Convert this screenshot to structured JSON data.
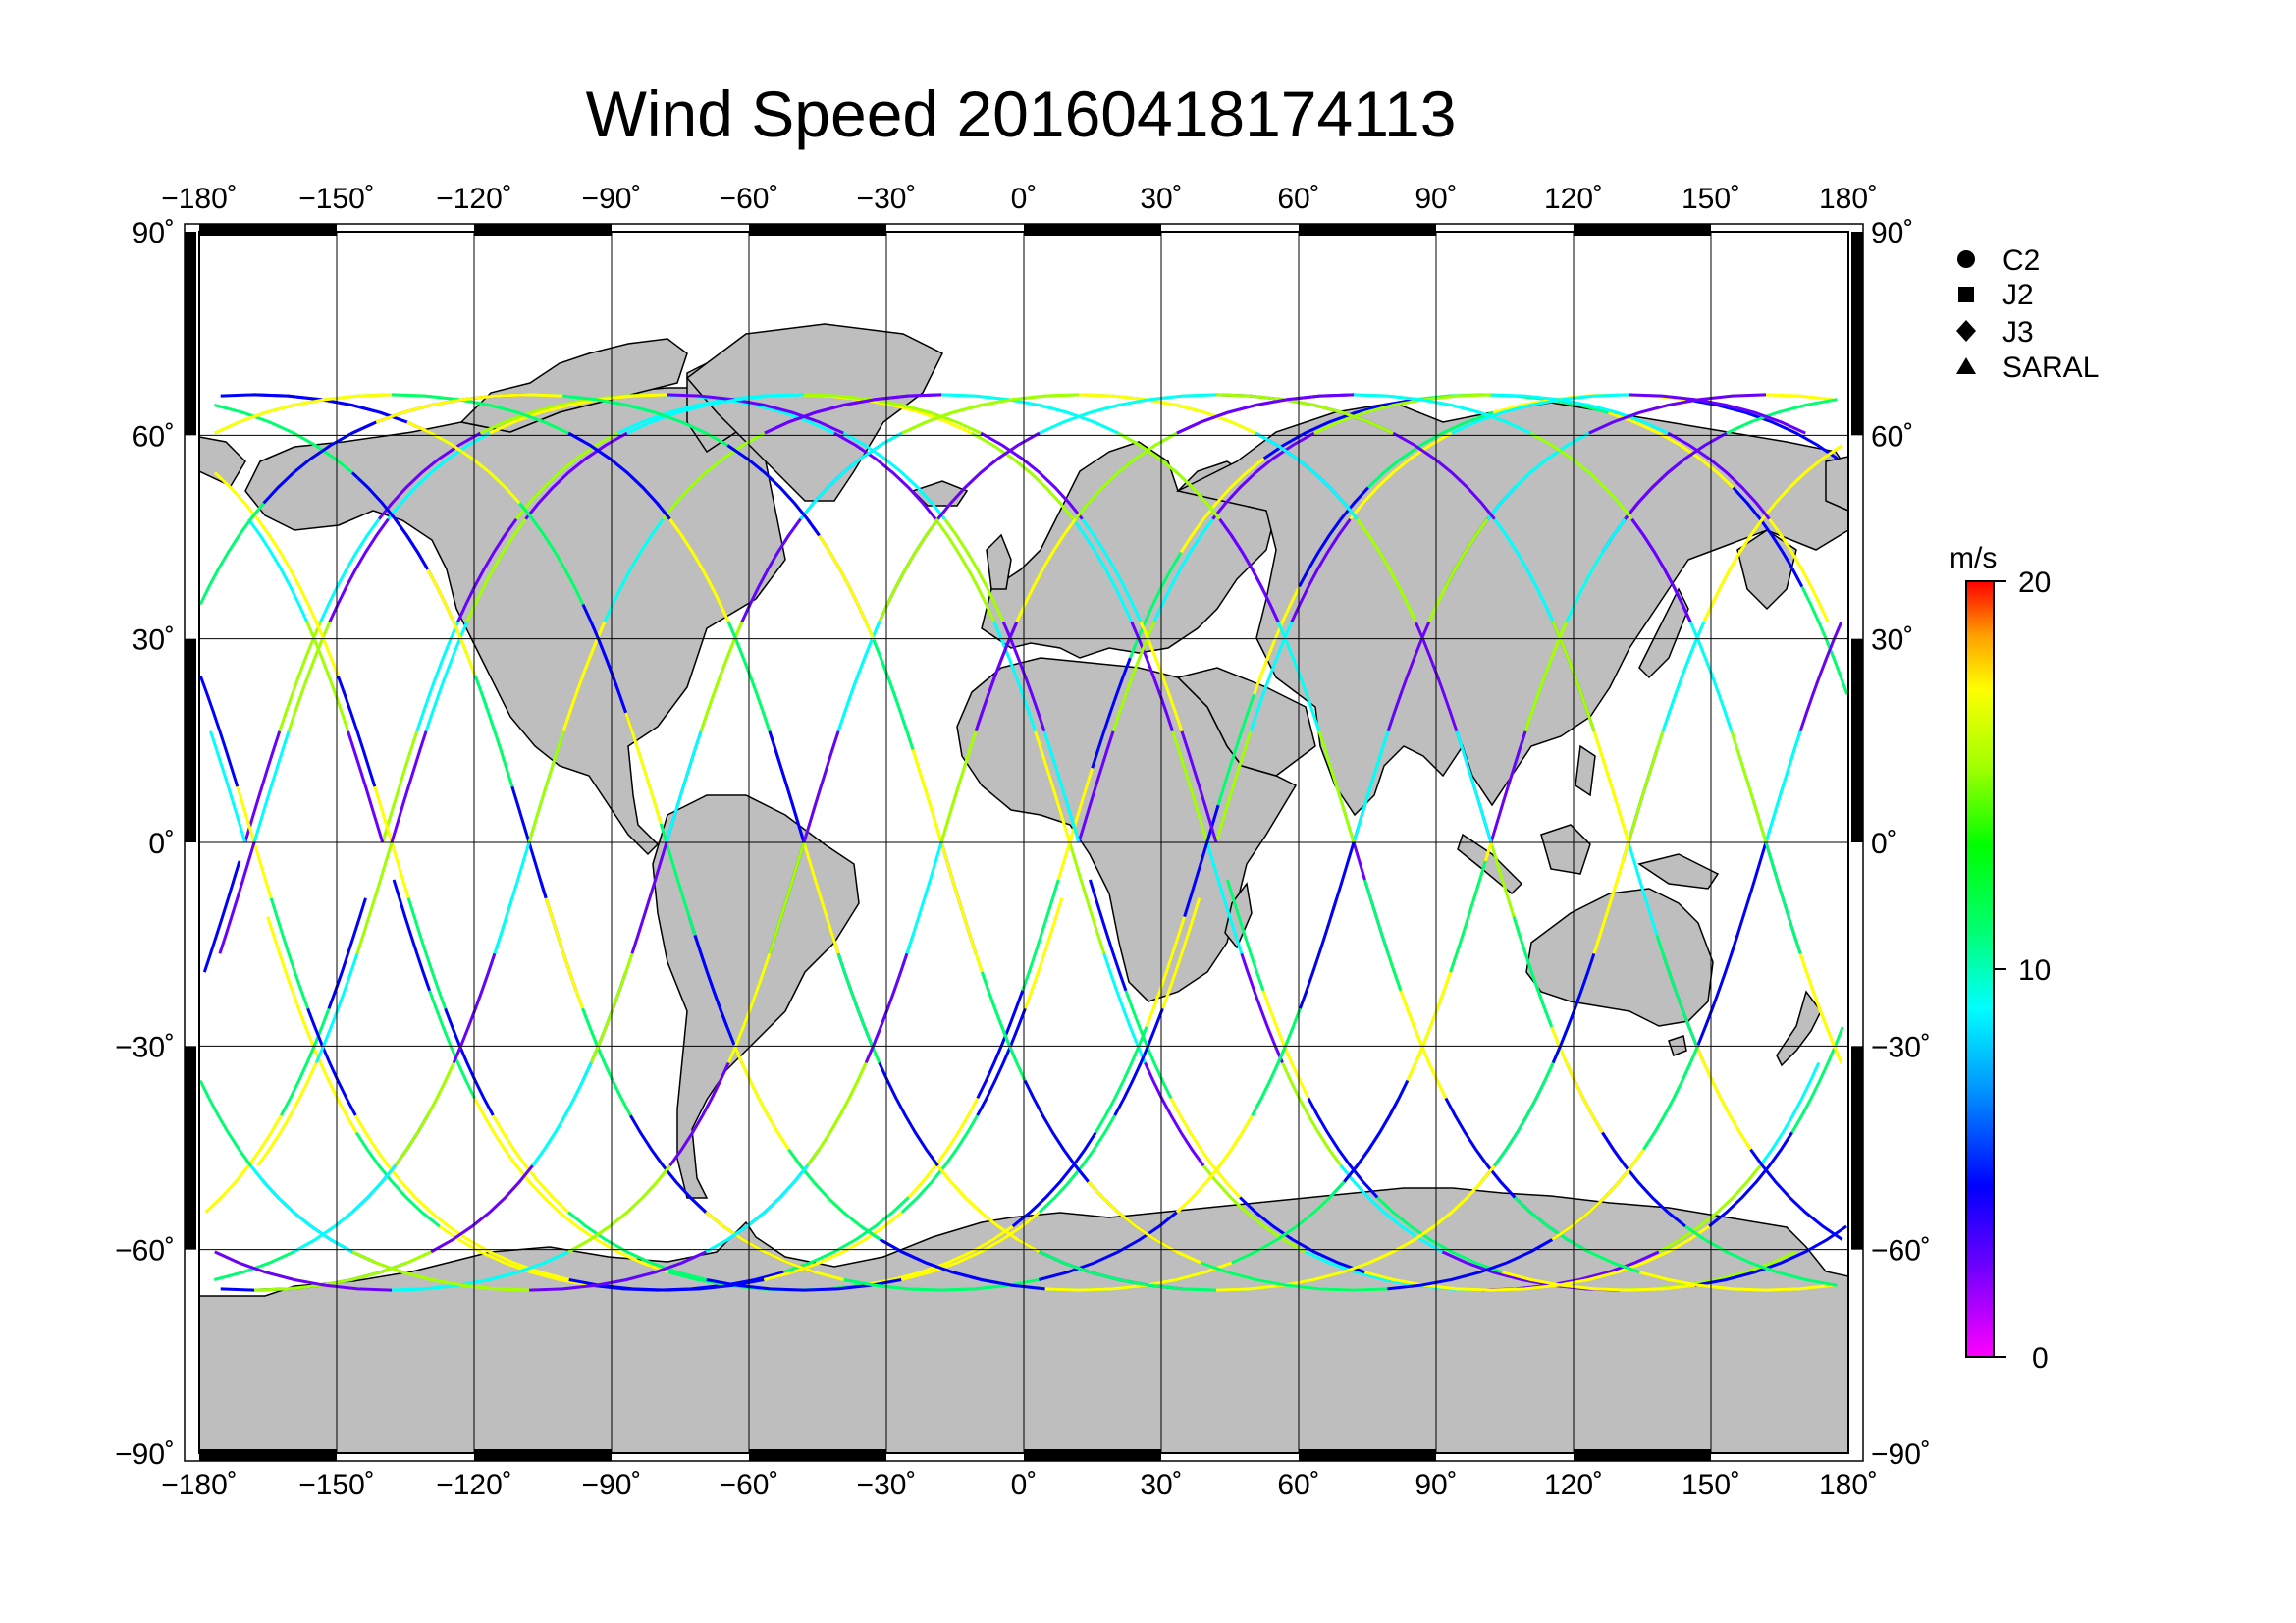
{
  "title": "Wind Speed 20160418174113",
  "map": {
    "lon_ticks": [
      "−180˚",
      "−150˚",
      "−120˚",
      "−90˚",
      "−60˚",
      "−30˚",
      "0˚",
      "30˚",
      "60˚",
      "90˚",
      "120˚",
      "150˚",
      "180˚"
    ],
    "lat_ticks_left": [
      "90˚",
      "60˚",
      "30˚",
      "0˚",
      "−30˚",
      "−60˚",
      "−90˚"
    ],
    "lat_ticks_right": [
      "90˚",
      "60˚",
      "30˚",
      "0˚",
      "−30˚",
      "−60˚",
      "−90˚"
    ],
    "land_color": "#bebebe",
    "ocean_color": "#ffffff"
  },
  "legend": {
    "items": [
      {
        "symbol": "circle",
        "label": "C2"
      },
      {
        "symbol": "square",
        "label": "J2"
      },
      {
        "symbol": "diamond",
        "label": "J3"
      },
      {
        "symbol": "triangle",
        "label": "SARAL"
      }
    ]
  },
  "colorbar": {
    "unit": "m/s",
    "min": 0,
    "max": 20,
    "tick_labels": [
      "20",
      "10",
      "0"
    ],
    "colors": [
      "#ff00ff",
      "#6a00ff",
      "#0000ff",
      "#0090ff",
      "#00ffff",
      "#00ff70",
      "#00ff00",
      "#a0ff00",
      "#ffff00",
      "#ffa000",
      "#ff0000"
    ]
  }
}
